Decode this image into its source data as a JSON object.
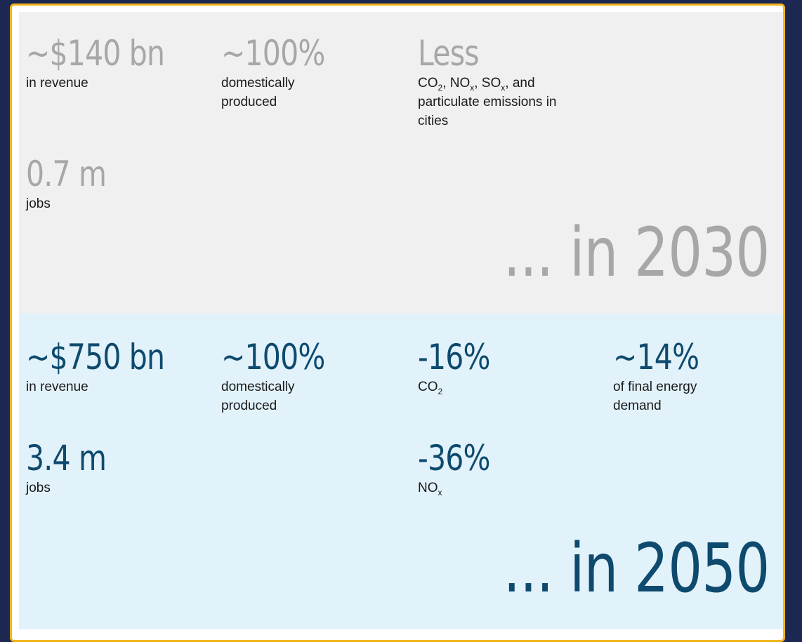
{
  "y2030": {
    "revenue": {
      "value": "~$140 bn",
      "label": "in revenue"
    },
    "domestic": {
      "value": "~100%",
      "label": "domestically produced"
    },
    "emissions": {
      "value": "Less",
      "label_part1": "CO",
      "sub1": "2",
      "label_part2": ", NO",
      "sub2": "x",
      "label_part3": ", SO",
      "sub3": "x",
      "label_part4": ", and particulate emissions in cities"
    },
    "jobs": {
      "value": "0.7 m",
      "label": "jobs"
    },
    "footer": "... in 2030"
  },
  "y2050": {
    "revenue": {
      "value": "~$750 bn",
      "label": "in revenue"
    },
    "domestic": {
      "value": "~100%",
      "label": "domestically produced"
    },
    "co2": {
      "value": "-16%",
      "label": "CO",
      "sub": "2"
    },
    "energy": {
      "value": "~14%",
      "label": "of final energy demand"
    },
    "jobs": {
      "value": "3.4 m",
      "label": "jobs"
    },
    "nox": {
      "value": "-36%",
      "label": "NO",
      "sub": "x"
    },
    "footer": "... in 2050"
  },
  "colors": {
    "frame_border": "#f2b51c",
    "background": "#1d2852",
    "panel_2030": "#f0f0f0",
    "panel_2050": "#e2f2fa",
    "text_2030": "#a7a7a9",
    "text_2050": "#0e4a6e"
  }
}
